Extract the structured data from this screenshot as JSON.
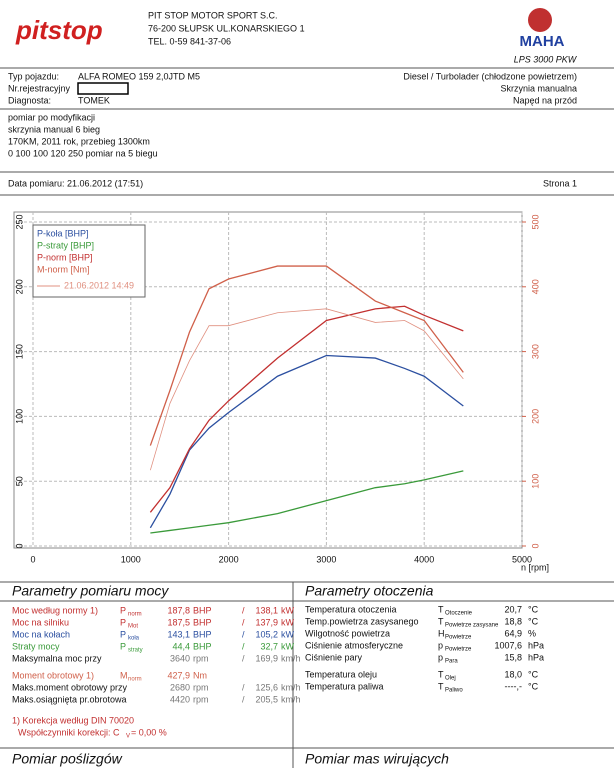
{
  "header": {
    "logo": "pitstop",
    "company": "PIT STOP MOTOR SPORT S.C.",
    "address": "76-200 SŁUPSK UL.KONARSKIEGO 1",
    "phone": "TEL. 0-59 841-37-06",
    "brand": "MAHA",
    "model": "LPS 3000 PKW"
  },
  "vehicle": {
    "type_label": "Typ pojazdu:",
    "type": "ALFA ROMEO 159 2,0JTD M5",
    "reg_label": "Nr.rejestracyjny",
    "diag_label": "Diagnosta:",
    "diag": "TOMEK",
    "engine": "Diesel / Turbolader (chłodzone powietrzem)",
    "gearbox": "Skrzynia manualna",
    "drive": "Napęd na przód"
  },
  "notes": [
    "pomiar po modyfikacji",
    "skrzynia manual 6 bieg",
    "170KM, 2011 rok, przebieg 1300km",
    "0 100 100 120 250 pomiar na 5 biegu"
  ],
  "date": "Data pomiaru: 21.06.2012 (17:51)",
  "page": "Strona 1",
  "chart_data": {
    "type": "line",
    "x_label": "n [rpm]",
    "x": [
      1200,
      1400,
      1600,
      1800,
      2000,
      2500,
      3000,
      3500,
      3800,
      4000,
      4400
    ],
    "xlim": [
      0,
      5000
    ],
    "xticks": [
      0,
      1000,
      2000,
      3000,
      4000,
      5000
    ],
    "ylim": [
      0,
      250
    ],
    "yticks": [
      0,
      50,
      100,
      150,
      200,
      250
    ],
    "y2lim": [
      0,
      500
    ],
    "y2ticks": [
      0,
      100,
      200,
      300,
      400,
      500
    ],
    "grid": true,
    "series": [
      {
        "name": "P-koła [BHP]",
        "color": "#2b4fa0",
        "values": [
          14,
          40,
          74,
          91,
          103,
          131,
          147,
          145,
          137,
          131,
          108
        ]
      },
      {
        "name": "P-straty [BHP]",
        "color": "#3a9a3a",
        "values": [
          10,
          12,
          14,
          16,
          18,
          25,
          35,
          45,
          48,
          51,
          58
        ]
      },
      {
        "name": "P-norm [BHP]",
        "color": "#c23030",
        "values": [
          26,
          45,
          75,
          97,
          112,
          145,
          174,
          183,
          185,
          178,
          166
        ]
      },
      {
        "name": "M-norm [Nm]",
        "color": "#d0604a",
        "axis": "y2",
        "values": [
          155,
          240,
          330,
          397,
          412,
          432,
          432,
          378,
          360,
          348,
          268
        ]
      },
      {
        "name": "21.06.2012 14:49",
        "color": "#e09080",
        "axis": "y2",
        "values": [
          117,
          220,
          286,
          340,
          340,
          360,
          366,
          345,
          348,
          332,
          258
        ]
      }
    ]
  },
  "power": {
    "title": "Parametry pomiaru mocy",
    "rows": [
      [
        "Moc według normy  1)",
        "P",
        "norm",
        "187,8",
        "BHP",
        "/",
        "138,1",
        "kW"
      ],
      [
        "Moc na silniku",
        "P",
        "Mot",
        "187,5",
        "BHP",
        "/",
        "137,9",
        "kW"
      ],
      [
        "Moc na kołach",
        "P",
        "koła",
        "143,1",
        "BHP",
        "/",
        "105,2",
        "kW"
      ],
      [
        "Straty mocy",
        "P",
        "straty",
        "44,4",
        "BHP",
        "/",
        "32,7",
        "kW"
      ],
      [
        "Maksymalna moc przy",
        "",
        "",
        "3640",
        "rpm",
        "/",
        "169,9",
        "km/h"
      ],
      [
        "Moment obrotowy  1)",
        "M",
        "norm",
        "427,9",
        "Nm",
        "",
        "",
        ""
      ],
      [
        "Maks.moment obrotowy przy",
        "",
        "",
        "2680",
        "rpm",
        "/",
        "125,6",
        "km/h"
      ],
      [
        "Maks.osiągnięta pr.obrotowa",
        "",
        "",
        "4420",
        "rpm",
        "/",
        "205,5",
        "km/h"
      ]
    ],
    "correction": "1) Korekcja według DIN 70020",
    "coef": "Współczynniki korekcji: C",
    "coef_sub": "V",
    "coef_val": "=   0,00 %"
  },
  "env": {
    "title": "Parametry otoczenia",
    "rows": [
      [
        "Temperatura otoczenia",
        "T",
        "Otoczenie",
        "20,7",
        "°C"
      ],
      [
        "Temp.powietrza zasysanego",
        "T",
        "Powietrze zasysane",
        "18,8",
        "°C"
      ],
      [
        "Wilgotność powietrza",
        "H",
        "Powietrze",
        "64,9",
        "%"
      ],
      [
        "Ciśnienie atmosferyczne",
        "p",
        "Powietrze",
        "1007,6",
        "hPa"
      ],
      [
        "Ciśnienie pary",
        "p",
        "Para",
        "15,8",
        "hPa"
      ],
      [
        "Temperatura oleju",
        "T",
        "Olej",
        "18,0",
        "°C"
      ],
      [
        "Temperatura paliwa",
        "T",
        "Paliwo",
        "----,-",
        "°C"
      ]
    ]
  },
  "bottom": [
    "Pomiar poślizgów",
    "Pomiar mas wirujących"
  ]
}
